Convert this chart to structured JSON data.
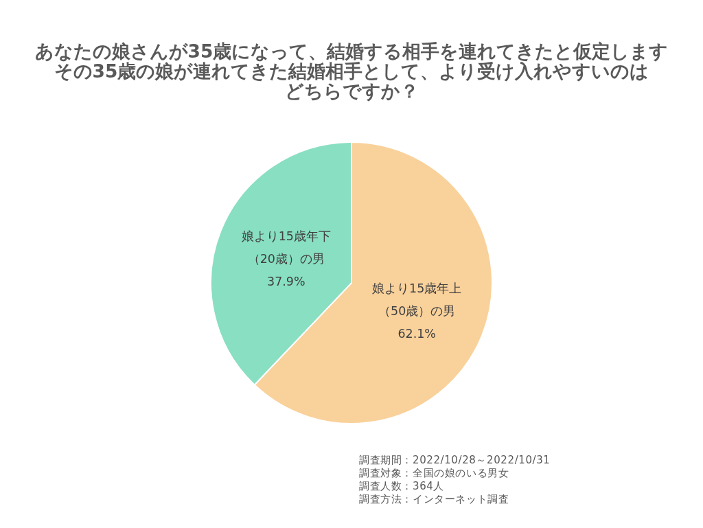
{
  "chart_data": {
    "type": "pie",
    "title": "あなたの娘さんが35歳になって、結婚する相手を連れてきたと仮定します",
    "subtitle": "その35歳の娘が連れてきた結婚相手として、より受け入れやすいのはどちらですか？",
    "categories": [
      "娘より15歳年上（50歳）の男",
      "娘より15歳年下（20歳）の男"
    ],
    "values": [
      62.1,
      37.9
    ],
    "value_labels": [
      "62.1%",
      "37.9%"
    ],
    "colors": [
      "#f9d19b",
      "#88dfc2"
    ],
    "annotations": [
      "調査期間：2022/10/28～2022/10/31",
      "調査対象：全国の娘のいる男女",
      "調査人数：364人",
      "調査方法：インターネット調査"
    ]
  }
}
